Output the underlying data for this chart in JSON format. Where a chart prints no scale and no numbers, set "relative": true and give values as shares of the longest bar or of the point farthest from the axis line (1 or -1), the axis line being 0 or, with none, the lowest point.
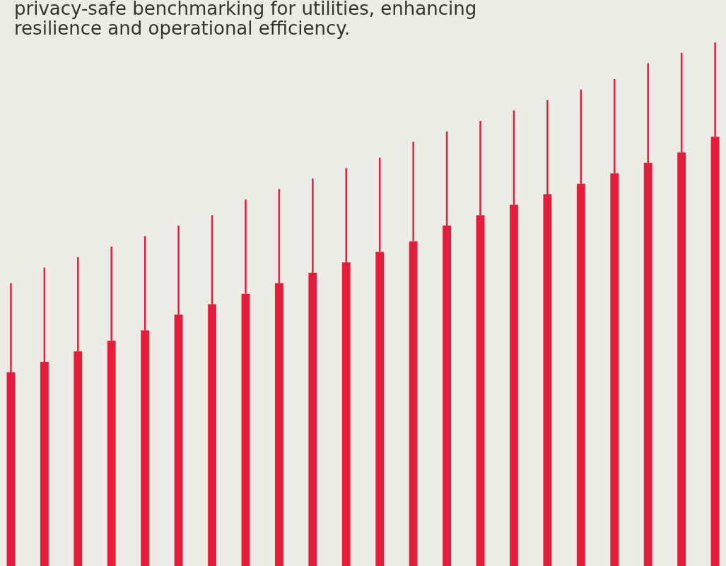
{
  "chart_data": {
    "type": "bar",
    "title": [
      "privacy-safe benchmarking for utilities, enhancing",
      "resilience and operational efficiency."
    ],
    "categories": [
      null,
      null,
      null,
      null,
      null,
      null,
      null,
      null,
      null,
      null,
      null,
      null,
      null,
      null,
      null,
      null,
      null,
      null,
      null,
      null,
      null,
      null
    ],
    "relative": true,
    "tick_labels": false,
    "stacked": true,
    "series": [
      {
        "color": "#e41e3a",
        "values": [
          0.37,
          0.39,
          0.41,
          0.43,
          0.45,
          0.48,
          0.5,
          0.52,
          0.54,
          0.56,
          0.58,
          0.6,
          0.62,
          0.65,
          0.67,
          0.69,
          0.71,
          0.73,
          0.75,
          0.77,
          0.79,
          0.82
        ]
      },
      {
        "color": "#e41e3a",
        "values": [
          0.17,
          0.18,
          0.18,
          0.18,
          0.18,
          0.17,
          0.17,
          0.18,
          0.18,
          0.18,
          0.18,
          0.18,
          0.19,
          0.18,
          0.18,
          0.18,
          0.18,
          0.18,
          0.18,
          0.19,
          0.19,
          0.18
        ]
      }
    ]
  }
}
